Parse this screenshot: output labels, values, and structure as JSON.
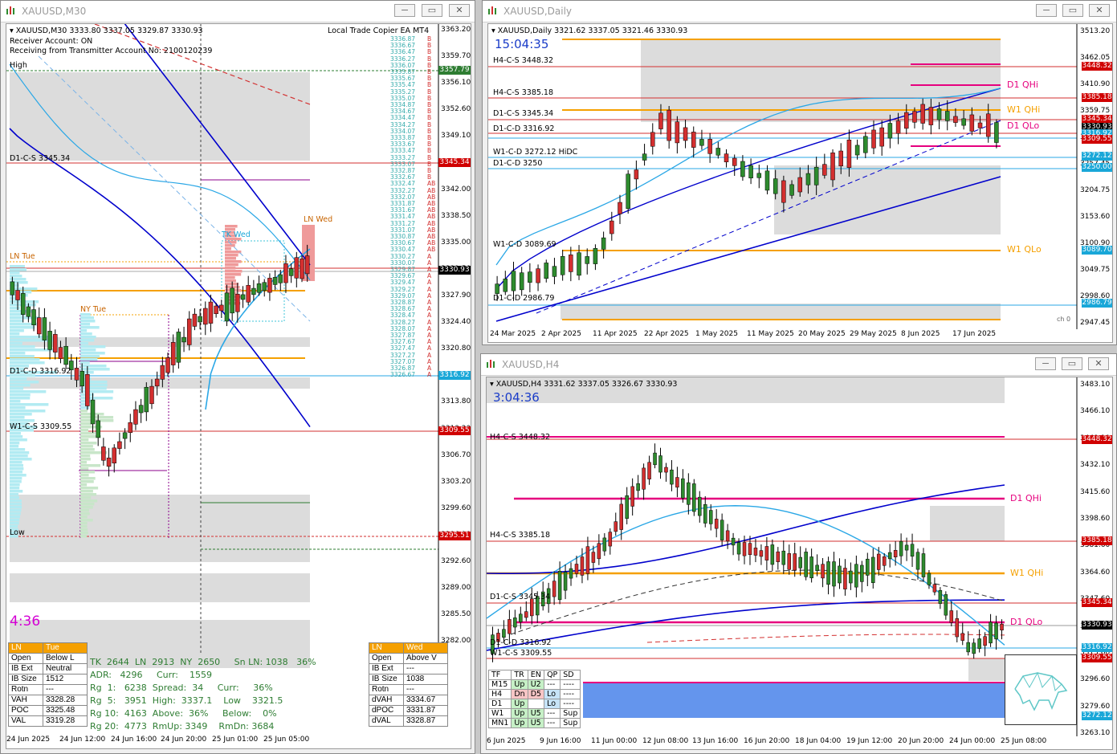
{
  "windows": {
    "m30": {
      "title": "XAUUSD,M30",
      "ohlc": "XAUUSD,M30  3333.80 3337.05 3329.87 3330.93",
      "ea": "Local Trade Copier EA MT4",
      "info": [
        "Receiver Account: ON",
        "Receiving from Transmitter Account No: 2100120239"
      ],
      "timer": "4:36",
      "axis": [
        "3363.20",
        "3359.70",
        "3356.10",
        "3352.60",
        "3349.10",
        "3345.60",
        "3342.00",
        "3338.50",
        "3335.00",
        "3331.50",
        "3327.90",
        "3324.40",
        "3320.80",
        "3317.30",
        "3313.80",
        "3310.20",
        "3306.70",
        "3303.20",
        "3299.60",
        "3296.10",
        "3292.60",
        "3289.00",
        "3285.50",
        "3282.00"
      ],
      "price_tags": [
        {
          "text": "3357.79",
          "color": "#2e7d32"
        },
        {
          "text": "3345.34",
          "color": "#d00000"
        },
        {
          "text": "3330.93",
          "color": "#000000"
        },
        {
          "text": "3316.92",
          "color": "#19a7d8"
        },
        {
          "text": "3309.55",
          "color": "#d00000"
        },
        {
          "text": "3295.51",
          "color": "#d00000"
        }
      ],
      "levels": [
        "High",
        "D1-C-S 3345.34",
        "LN Tue",
        "NY Tue",
        "D1-C-D 3316.92",
        "W1-C-S 3309.55",
        "Low",
        "LN Wed",
        "TK Wed"
      ],
      "copier_prices": [
        "3336.87",
        "3336.67",
        "3336.47",
        "3336.27",
        "3336.07",
        "3335.87",
        "3335.67",
        "3335.47",
        "3335.27",
        "3335.07",
        "3334.87",
        "3334.67",
        "3334.47",
        "3334.27",
        "3334.07",
        "3333.87",
        "3333.67",
        "3333.47",
        "3333.27",
        "3333.07",
        "3332.87",
        "3332.67",
        "3332.47",
        "3332.27",
        "3332.07",
        "3331.87",
        "3331.67",
        "3331.47",
        "3331.27",
        "3331.07",
        "3330.87",
        "3330.67",
        "3330.47",
        "3330.27",
        "3330.07",
        "3329.87",
        "3329.67",
        "3329.47",
        "3329.27",
        "3329.07",
        "3328.87",
        "3328.67",
        "3328.47",
        "3328.27",
        "3328.07",
        "3327.87",
        "3327.67",
        "3327.47",
        "3327.27",
        "3327.07",
        "3326.87",
        "3326.67"
      ],
      "xaxis": [
        "24 Jun 2025",
        "24 Jun 12:00",
        "24 Jun 16:00",
        "24 Jun 20:00",
        "25 Jun 01:00",
        "25 Jun 05:00"
      ],
      "stats": {
        "tue_title": [
          "LN",
          "Tue"
        ],
        "tue_rows": [
          [
            "Open",
            "Below L"
          ],
          [
            "IB Ext",
            "Neutral"
          ],
          [
            "IB Size",
            "1512"
          ],
          [
            "Rotn",
            "---"
          ],
          [
            "VAH",
            "3328.28"
          ],
          [
            "POC",
            "3325.48"
          ],
          [
            "VAL",
            "3319.28"
          ]
        ],
        "wed_title": [
          "LN",
          "Wed"
        ],
        "wed_rows": [
          [
            "Open",
            "Above V"
          ],
          [
            "IB Ext",
            "---"
          ],
          [
            "IB Size",
            "1038"
          ],
          [
            "Rotn",
            "---"
          ],
          [
            "dVAH",
            "3334.67"
          ],
          [
            "dPOC",
            "3331.87"
          ],
          [
            "dVAL",
            "3328.87"
          ]
        ],
        "mid": [
          "TK  2644  LN  2913  NY  2650     Sn LN: 1038   36%",
          "ADR:   4296     Curr:    1559",
          "Rg  1:   6238  Spread:  34     Curr:     36%",
          "Rg  5:   3951  High:  3337.1    Low    3321.5",
          "Rg 10:  4163  Above:  36%     Below:    0%",
          "Rg 20:  4773  RmUp: 3349    RmDn: 3684"
        ]
      }
    },
    "daily": {
      "title": "XAUUSD,Daily",
      "ohlc": "XAUUSD,Daily  3321.62 3337.05 3321.46 3330.93",
      "timer": "15:04:35",
      "axis": [
        "3513.20",
        "3462.05",
        "3410.90",
        "3359.75",
        "3308.60",
        "3257.45",
        "3204.75",
        "3153.60",
        "3100.90",
        "3049.75",
        "2998.60",
        "2947.45"
      ],
      "price_tags": [
        {
          "text": "3448.32",
          "color": "#d00000"
        },
        {
          "text": "3385.18",
          "color": "#d00000"
        },
        {
          "text": "3345.34",
          "color": "#d00000"
        },
        {
          "text": "3330.93",
          "color": "#000000"
        },
        {
          "text": "3316.92",
          "color": "#19a7d8"
        },
        {
          "text": "3309.55",
          "color": "#d00000"
        },
        {
          "text": "3272.12",
          "color": "#19a7d8"
        },
        {
          "text": "3250.00",
          "color": "#19a7d8"
        },
        {
          "text": "3089.70",
          "color": "#19a7d8"
        },
        {
          "text": "2986.79",
          "color": "#19a7d8"
        }
      ],
      "levels": [
        "H4-C-S 3448.32",
        "H4-C-S 3385.18",
        "D1-C-S 3345.34",
        "D1-C-D 3316.92",
        "W1-C-D 3272.12 HiDC",
        "D1-C-D 3250",
        "W1-C-D 3089.69",
        "D1-C-D 2986.79"
      ],
      "zone_labels": [
        "D1 QHi",
        "W1 QHi",
        "D1 QLo",
        "W1 QLo"
      ],
      "subwin": "ch 0",
      "xaxis": [
        "24 Mar 2025",
        "2 Apr 2025",
        "11 Apr 2025",
        "22 Apr 2025",
        "1 May 2025",
        "11 May 2025",
        "20 May 2025",
        "29 May 2025",
        "8 Jun 2025",
        "17 Jun 2025"
      ]
    },
    "h4": {
      "title": "XAUUSD,H4",
      "ohlc": "XAUUSD,H4  3331.62 3337.05 3326.67 3330.93",
      "timer": "3:04:36",
      "axis": [
        "3483.10",
        "3466.10",
        "3449.10",
        "3432.10",
        "3415.60",
        "3398.60",
        "3381.60",
        "3364.60",
        "3347.60",
        "3330.60",
        "3313.60",
        "3296.60",
        "3279.60",
        "3263.10"
      ],
      "price_tags": [
        {
          "text": "3448.32",
          "color": "#d00000"
        },
        {
          "text": "3385.18",
          "color": "#d00000"
        },
        {
          "text": "3345.34",
          "color": "#d00000"
        },
        {
          "text": "3330.93",
          "color": "#000000"
        },
        {
          "text": "3316.92",
          "color": "#19a7d8"
        },
        {
          "text": "3309.55",
          "color": "#d00000"
        },
        {
          "text": "3272.12",
          "color": "#19a7d8"
        }
      ],
      "levels": [
        "H4-C-S 3448.32",
        "H4-C-S 3385.18",
        "D1-C-S 3345.34",
        "D1-C-D 3316.92",
        "W1-C-S 3309.55"
      ],
      "zone_labels": [
        "D1 QHi",
        "W1 QHi",
        "D1 QLo"
      ],
      "trend": {
        "headers": [
          "TF",
          "TR",
          "EN",
          "QP",
          "SD"
        ],
        "rows": [
          [
            "M15",
            "Up",
            "U2",
            "---",
            "----"
          ],
          [
            "H4",
            "Dn",
            "D5",
            "Lo",
            "----"
          ],
          [
            "D1",
            "Up",
            "",
            "Lo",
            "----"
          ],
          [
            "W1",
            "Up",
            "U5",
            "---",
            "Sup"
          ],
          [
            "MN1",
            "Up",
            "U5",
            "---",
            "Sup"
          ]
        ]
      },
      "xaxis": [
        "6 Jun 2025",
        "9 Jun 16:00",
        "11 Jun 00:00",
        "12 Jun 08:00",
        "13 Jun 16:00",
        "16 Jun 20:00",
        "18 Jun 04:00",
        "19 Jun 12:00",
        "20 Jun 20:00",
        "24 Jun 00:00",
        "25 Jun 08:00"
      ]
    }
  },
  "colors": {
    "bull": "#2e8b2e",
    "bear": "#d32f2f",
    "orange": "#f5a000",
    "magenta": "#e6007e",
    "blue": "#0000cc",
    "lightblue": "#2aa7e6"
  }
}
